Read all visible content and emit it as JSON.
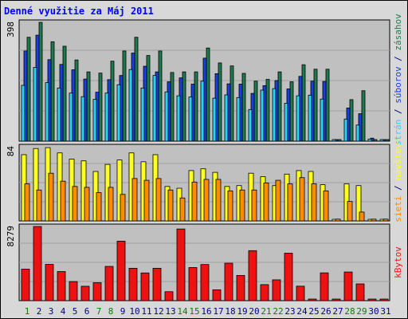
{
  "title": "Denné využitie za Máj 2011",
  "chart_data": [
    {
      "type": "bar",
      "panel": "requests",
      "ymax_label": "398",
      "ylim": [
        0,
        398
      ],
      "categories": [
        "1",
        "2",
        "3",
        "4",
        "5",
        "6",
        "7",
        "8",
        "9",
        "10",
        "11",
        "12",
        "13",
        "14",
        "15",
        "16",
        "17",
        "18",
        "19",
        "20",
        "21",
        "22",
        "23",
        "24",
        "25",
        "26",
        "27",
        "28",
        "29",
        "30",
        "31"
      ],
      "legend": [
        "strán",
        " / ",
        "súborov",
        " / ",
        "zásahov"
      ],
      "series": [
        {
          "name": "zásahov",
          "values": [
            348,
            398,
            333,
            318,
            272,
            232,
            228,
            268,
            302,
            348,
            287,
            302,
            230,
            232,
            232,
            312,
            262,
            252,
            227,
            201,
            207,
            232,
            199,
            256,
            241,
            241,
            0,
            139,
            169,
            0,
            0
          ]
        },
        {
          "name": "súborov",
          "values": [
            302,
            355,
            273,
            257,
            239,
            208,
            164,
            206,
            220,
            295,
            251,
            232,
            199,
            212,
            191,
            278,
            226,
            192,
            191,
            160,
            186,
            203,
            175,
            217,
            201,
            200,
            0,
            111,
            92,
            10,
            0
          ]
        },
        {
          "name": "strán",
          "values": [
            187,
            247,
            196,
            178,
            161,
            149,
            140,
            161,
            189,
            240,
            178,
            220,
            165,
            152,
            148,
            201,
            144,
            155,
            146,
            106,
            171,
            176,
            127,
            152,
            154,
            141,
            4,
            74,
            54,
            7,
            5
          ]
        }
      ]
    },
    {
      "type": "bar",
      "panel": "visits",
      "ymax_label": "84",
      "ylim": [
        0,
        84
      ],
      "legend": [
        "sieti",
        " / ",
        "návštev"
      ],
      "series": [
        {
          "name": "návštev",
          "values": [
            75,
            82,
            83,
            77,
            70,
            68,
            56,
            64,
            69,
            77,
            67,
            75,
            39,
            37,
            57,
            59,
            55,
            39,
            40,
            54,
            50,
            40,
            53,
            57,
            56,
            41,
            0,
            42,
            40,
            0,
            0
          ]
        },
        {
          "name": "sieti",
          "values": [
            42,
            35,
            54,
            45,
            39,
            38,
            32,
            38,
            30,
            48,
            46,
            48,
            35,
            26,
            44,
            47,
            47,
            34,
            35,
            35,
            43,
            46,
            42,
            49,
            42,
            34,
            2,
            22,
            10,
            2,
            2
          ]
        }
      ]
    },
    {
      "type": "bar",
      "panel": "traffic",
      "ymax_label": "8279",
      "ylim": [
        0,
        8279
      ],
      "legend": [
        "kBytov"
      ],
      "series": [
        {
          "name": "kBytov",
          "values": [
            3515,
            8279,
            4047,
            3249,
            2133,
            1607,
            2009,
            3825,
            6643,
            3616,
            3094,
            3616,
            1000,
            8000,
            3695,
            4033,
            1211,
            4182,
            2815,
            5581,
            1790,
            2324,
            5297,
            1615,
            138,
            3101,
            0,
            3199,
            1869,
            0,
            0
          ]
        }
      ]
    }
  ],
  "x_tick_colors": [
    "#0b7a0b",
    "#000080",
    "#000080",
    "#000080",
    "#000080",
    "#000080",
    "#0b7a0b",
    "#0b7a0b",
    "#000080",
    "#000080",
    "#000080",
    "#000080",
    "#000080",
    "#0b7a0b",
    "#0b7a0b",
    "#000080",
    "#000080",
    "#000080",
    "#000080",
    "#000080",
    "#0b7a0b",
    "#0b7a0b",
    "#000080",
    "#000080",
    "#000080",
    "#000080",
    "#000080",
    "#0b7a0b",
    "#0b7a0b",
    "#000080",
    "#000080"
  ],
  "colors": {
    "background": "#d8d8d8",
    "plot": "#c0c0c0",
    "grid": "#a0a0a0",
    "title": "#0000ff",
    "label": "#000080",
    "hits": "#1f7a50",
    "files": "#1a3fe0",
    "pages": "#2ad0f5",
    "visits": "#ffff22",
    "sites": "#ff8c00",
    "kbytes": "#ee1111"
  }
}
